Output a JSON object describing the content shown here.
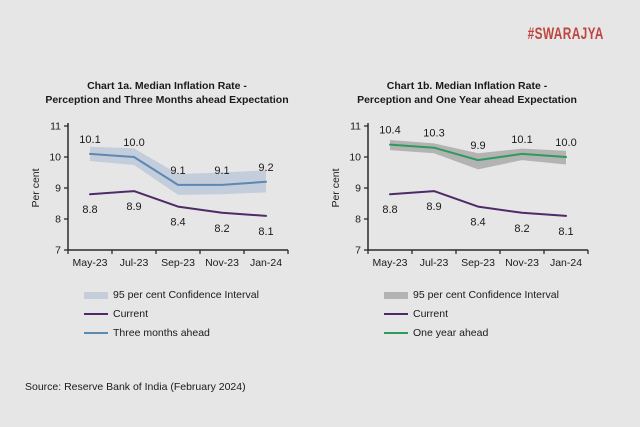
{
  "page": {
    "background_color": "#e6e6e6",
    "brand": "#SWARAJYA",
    "brand_color": "#bf4540",
    "source_note": "Source: Reserve Bank of India (February 2024)"
  },
  "chart_data": [
    {
      "type": "line",
      "title_lines": [
        "Chart 1a. Median Inflation Rate -",
        "Perception and Three Months ahead Expectation"
      ],
      "ylabel": "Per cent",
      "ylim": [
        7,
        11
      ],
      "yticks": [
        7,
        8,
        9,
        10,
        11
      ],
      "categories": [
        "May-23",
        "Jul-23",
        "Sep-23",
        "Nov-23",
        "Jan-24"
      ],
      "grid": false,
      "legend_position": "below-left",
      "band": {
        "label": "95 per cent Confidence Interval",
        "color": "#c4cddc",
        "upper": [
          10.33,
          10.28,
          9.45,
          9.5,
          9.57
        ],
        "lower": [
          9.87,
          9.74,
          8.78,
          8.8,
          8.86
        ]
      },
      "series": [
        {
          "name": "Current",
          "color": "#4f2a68",
          "values": [
            8.8,
            8.9,
            8.4,
            8.2,
            8.1
          ],
          "label_side": "below"
        },
        {
          "name": "Three months ahead",
          "color": "#5c88b4",
          "values": [
            10.1,
            10.0,
            9.1,
            9.1,
            9.2
          ],
          "label_side": "above"
        }
      ]
    },
    {
      "type": "line",
      "title_lines": [
        "Chart 1b. Median Inflation Rate -",
        "Perception and One Year ahead Expectation"
      ],
      "ylabel": "Per cent",
      "ylim": [
        7,
        11
      ],
      "yticks": [
        7,
        8,
        9,
        10,
        11
      ],
      "categories": [
        "May-23",
        "Jul-23",
        "Sep-23",
        "Nov-23",
        "Jan-24"
      ],
      "grid": false,
      "legend_position": "below-left",
      "band": {
        "label": "95 per cent Confidence Interval",
        "color": "#b3b3b3",
        "upper": [
          10.55,
          10.44,
          10.12,
          10.27,
          10.2
        ],
        "lower": [
          10.22,
          10.12,
          9.6,
          9.9,
          9.76
        ]
      },
      "series": [
        {
          "name": "Current",
          "color": "#4f2a68",
          "values": [
            8.8,
            8.9,
            8.4,
            8.2,
            8.1
          ],
          "label_side": "below"
        },
        {
          "name": "One year ahead",
          "color": "#2f9a60",
          "values": [
            10.4,
            10.3,
            9.9,
            10.1,
            10.0
          ],
          "label_side": "above"
        }
      ]
    }
  ]
}
